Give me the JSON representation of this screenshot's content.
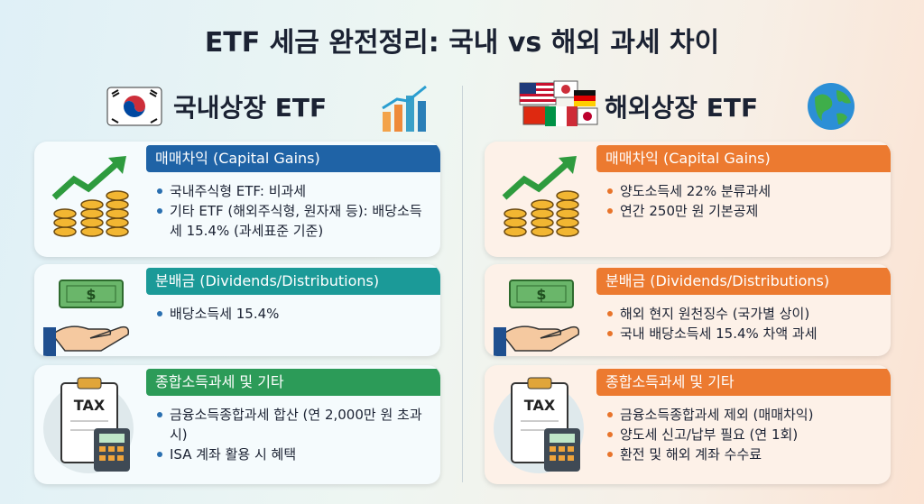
{
  "title": "ETF 세금 완전정리: 국내 vs 해외 과세 차이",
  "columns": [
    {
      "title": "국내상장 ETF",
      "sections": [
        {
          "heading": "매매차익 (Capital Gains)",
          "items": [
            "국내주식형 ETF: 비과세",
            "기타 ETF (해외주식형, 원자재 등): 배당소득세 15.4% (과세표준 기준)"
          ]
        },
        {
          "heading": "분배금 (Dividends/Distributions)",
          "icon_text": "$",
          "items": [
            "배당소득세 15.4%"
          ]
        },
        {
          "heading": "종합소득과세 및 기타",
          "icon_text": "TAX",
          "items": [
            "금융소득종합과세 합산 (연 2,000만 원 초과 시)",
            "ISA 계좌 활용 시 혜택"
          ]
        }
      ]
    },
    {
      "title": "해외상장 ETF",
      "sections": [
        {
          "heading": "매매차익 (Capital Gains)",
          "items": [
            "양도소득세 22% 분류과세",
            "연간 250만 원 기본공제"
          ]
        },
        {
          "heading": "분배금 (Dividends/Distributions)",
          "icon_text": "$",
          "items": [
            "해외 현지 원천징수 (국가별 상이)",
            "국내 배당소득세 15.4% 차액 과세"
          ]
        },
        {
          "heading": "종합소득과세 및 기타",
          "icon_text": "TAX",
          "items": [
            "금융소득종합과세 제외 (매매차익)",
            "양도세 신고/납부 필요 (연 1회)",
            "환전 및 해외 계좌 수수료"
          ]
        }
      ]
    }
  ]
}
